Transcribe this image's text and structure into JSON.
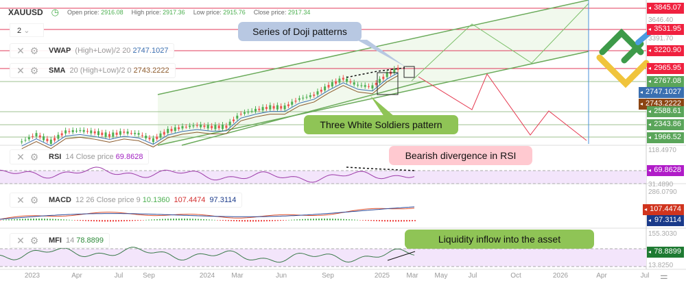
{
  "header": {
    "symbol": "XAUUSD",
    "open_label": "Open price:",
    "open": "2916.08",
    "high_label": "High price:",
    "high": "2917.36",
    "low_label": "Low price:",
    "low": "2915.76",
    "close_label": "Close price:",
    "close": "2917.34",
    "timeframe": "2",
    "icon": "clock-icon"
  },
  "indicators": {
    "vwap": {
      "name": "VWAP",
      "params": "(High+Low)/2 20",
      "value": "2747.1027"
    },
    "sma": {
      "name": "SMA",
      "params": "20 (High+Low)/2 0",
      "value": "2743.2222"
    },
    "rsi": {
      "name": "RSI",
      "params": "14 Close price",
      "value": "69.8628"
    },
    "macd": {
      "name": "MACD",
      "params": "12 26 Close price 9",
      "hist": "10.1360",
      "macd": "107.4474",
      "signal": "97.3114"
    },
    "mfi": {
      "name": "MFI",
      "params": "14",
      "value": "78.8899"
    }
  },
  "callouts": {
    "doji": "Series of Doji patterns",
    "soldiers": "Three White Soldiers pattern",
    "divergence": "Bearish divergence in RSI",
    "liquidity": "Liquidity inflow into the asset"
  },
  "price_axis": {
    "levels_red": [
      "3845.07",
      "3531.95",
      "3220.90",
      "2965.95"
    ],
    "levels_green": [
      "2767.08",
      "2588.61",
      "2343.86",
      "1966.52"
    ],
    "vwap_tag": "2747.1027",
    "sma_tag": "2743.2222",
    "ticks": [
      "3646.40",
      "3391.70"
    ],
    "rsi_ticks": [
      "118.4970",
      "31.4890"
    ],
    "rsi_tag": "69.8628",
    "macd_ticks": [
      "286.0790"
    ],
    "macd_tag": "107.4474",
    "signal_tag": "97.3114",
    "mfi_ticks": [
      "155.3030",
      "13.8250"
    ],
    "mfi_tag": "78.8899"
  },
  "time_axis": [
    "2023",
    "Apr",
    "Jul",
    "Sep",
    "2024",
    "Mar",
    "Jun",
    "Sep",
    "2025",
    "Mar",
    "May",
    "Jul",
    "Oct",
    "2026",
    "Apr",
    "Jul"
  ],
  "colors": {
    "up": "#4caf50",
    "down": "#ef5350",
    "red_level": "#e0395a",
    "green_level": "#6aaa5a",
    "vwap": "#3a6fb0",
    "sma": "#8b5a2b",
    "rsi_fill": "#f3e5fb"
  },
  "chart_data": {
    "type": "candlestick",
    "months": [
      "2022-12",
      "2023-01",
      "2023-02",
      "2023-03",
      "2023-04",
      "2023-05",
      "2023-06",
      "2023-07",
      "2023-08",
      "2023-09",
      "2023-10",
      "2023-11",
      "2023-12",
      "2024-01",
      "2024-02",
      "2024-03",
      "2024-04",
      "2024-05",
      "2024-06",
      "2024-07",
      "2024-08",
      "2024-09",
      "2024-10",
      "2024-11",
      "2024-12",
      "2025-01",
      "2025-02"
    ],
    "close": [
      1824,
      1928,
      1826,
      1969,
      1990,
      1962,
      1919,
      1965,
      1940,
      1849,
      1983,
      2036,
      2063,
      2039,
      2044,
      2230,
      2286,
      2327,
      2326,
      2447,
      2503,
      2634,
      2743,
      2650,
      2624,
      2798,
      2917
    ]
  }
}
